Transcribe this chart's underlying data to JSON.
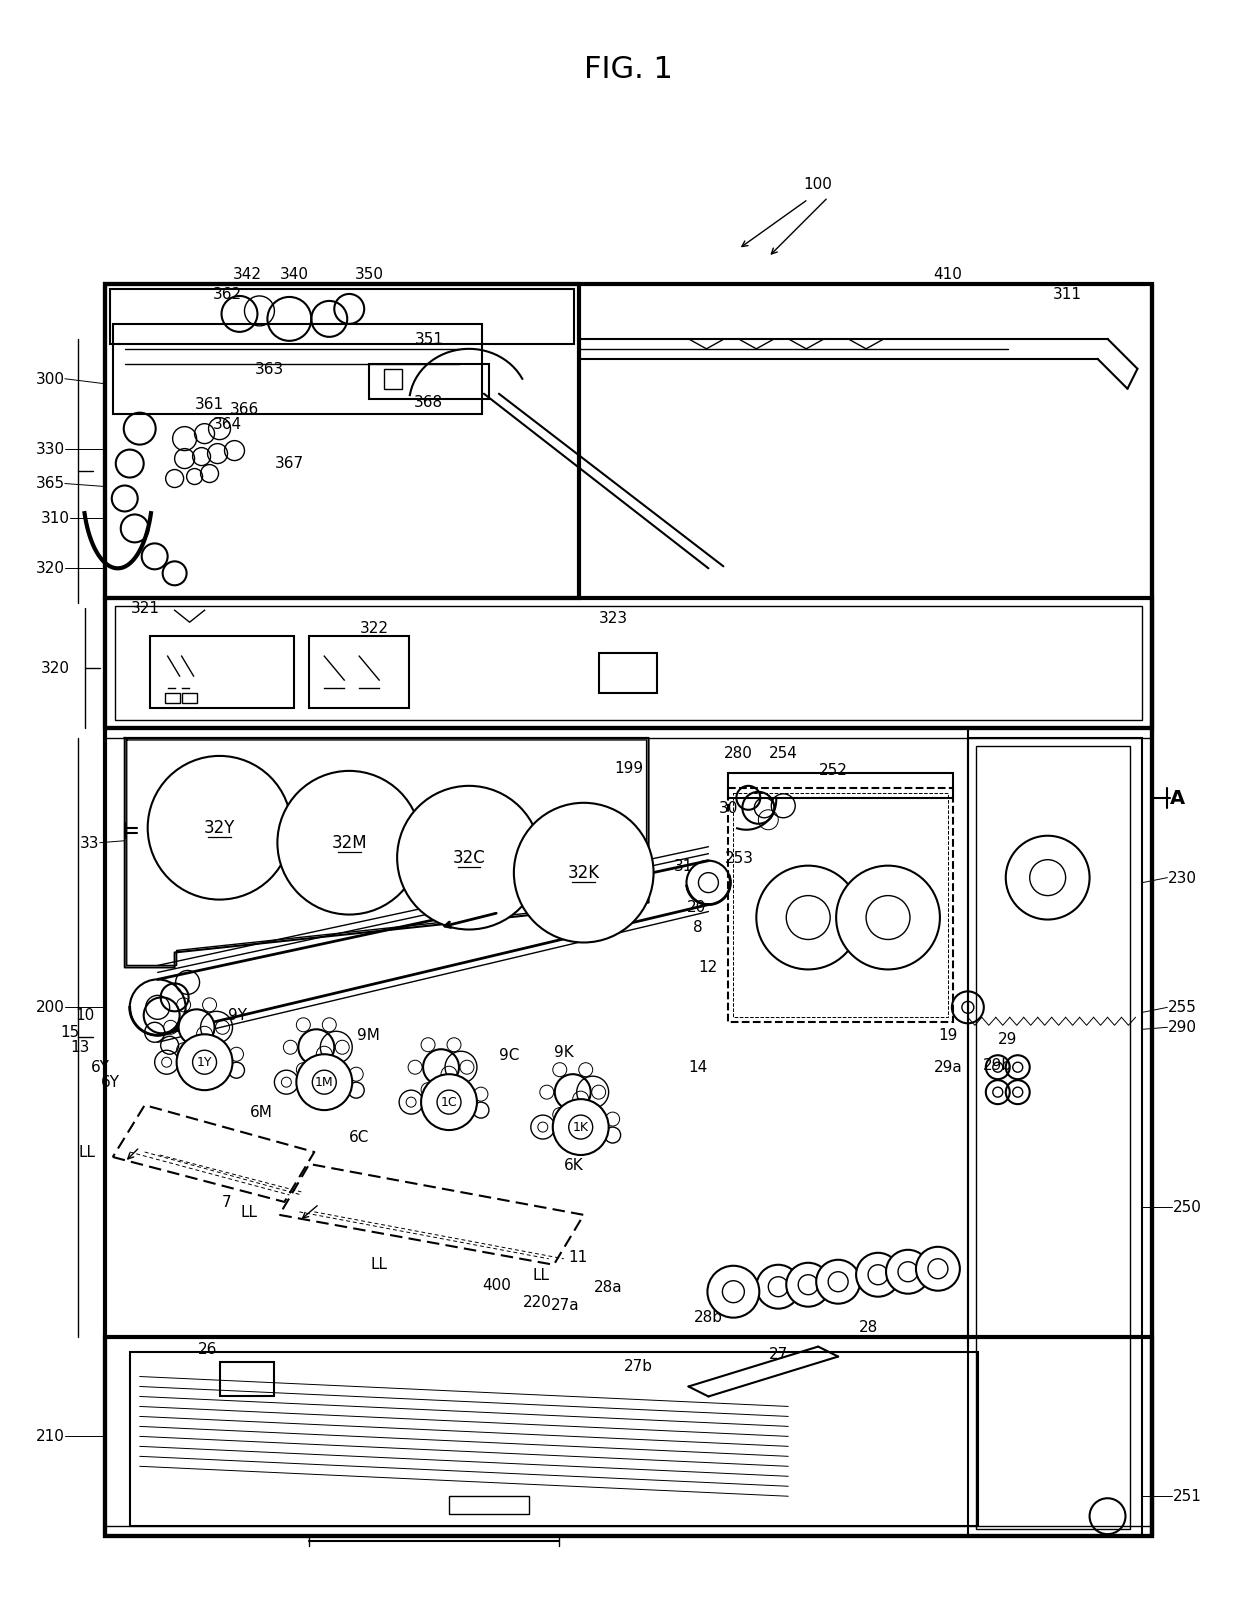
{
  "title": "FIG. 1",
  "bg": "#ffffff",
  "fw": 12.4,
  "fh": 15.99
}
